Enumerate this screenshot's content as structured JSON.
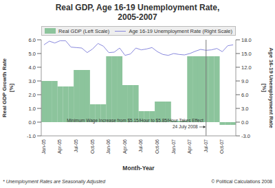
{
  "chart_data": {
    "type": "bar",
    "title": [
      "Real GDP, Age 16-19 Unemployment Rate,",
      "2005-2007"
    ],
    "categories": [
      "Jan-05",
      null,
      null,
      "Apr-05",
      null,
      null,
      "Jul-05",
      null,
      null,
      "Oct-05",
      null,
      null,
      "Jan-06",
      null,
      null,
      "Apr-06",
      null,
      null,
      "Jul-06",
      null,
      null,
      "Oct-06",
      null,
      null,
      "Jan-07",
      null,
      null,
      "Apr-07",
      null,
      null,
      "Jul-07",
      null,
      null,
      "Oct-07",
      null,
      null
    ],
    "series": [
      {
        "name": "Real GDP (Left Scale)",
        "type": "bar",
        "color": "#8cc49c",
        "values": [
          3.0,
          3.0,
          3.0,
          2.6,
          2.6,
          2.6,
          3.8,
          3.8,
          3.8,
          1.3,
          1.3,
          1.3,
          4.8,
          4.8,
          4.8,
          2.7,
          2.7,
          2.7,
          0.8,
          0.8,
          0.8,
          1.5,
          1.5,
          1.5,
          0.1,
          0.1,
          0.1,
          4.8,
          4.8,
          4.8,
          4.8,
          4.8,
          4.8,
          -0.2,
          -0.2,
          -0.2
        ]
      },
      {
        "name": "Age 16-19 Unemployment Rate (Right Scale)",
        "type": "line",
        "axis": "y2",
        "color": "#8888dd",
        "values": [
          16.9,
          17.7,
          17.3,
          17.8,
          17.8,
          16.4,
          16.3,
          16.2,
          15.2,
          16.0,
          17.2,
          16.6,
          15.2,
          15.3,
          16.2,
          14.6,
          14.9,
          16.2,
          15.8,
          16.0,
          16.3,
          15.4,
          14.8,
          14.6,
          15.0,
          14.8,
          14.7,
          15.0,
          15.5,
          15.9,
          15.7,
          15.8,
          16.1,
          15.4,
          16.7,
          16.9
        ]
      }
    ],
    "ylim": [
      -1,
      6
    ],
    "yticks": [
      {
        "value": -1,
        "label": "-1.0"
      },
      {
        "value": 0,
        "label": "0.0"
      },
      {
        "value": 1,
        "label": "1.0"
      },
      {
        "value": 2,
        "label": "2.0"
      },
      {
        "value": 3,
        "label": "3.0"
      },
      {
        "value": 4,
        "label": "4.0"
      },
      {
        "value": 5,
        "label": "5.0"
      },
      {
        "value": 6,
        "label": "6.0"
      }
    ],
    "y2lim": [
      -3,
      18
    ],
    "y2ticks": [
      {
        "value": -3,
        "label": "-3.0"
      },
      {
        "value": 0,
        "label": "0.0"
      },
      {
        "value": 3,
        "label": "3.0"
      },
      {
        "value": 6,
        "label": "6.0"
      },
      {
        "value": 9,
        "label": "9.0"
      },
      {
        "value": 12,
        "label": "12.0"
      },
      {
        "value": 15,
        "label": "15.0"
      },
      {
        "value": 18,
        "label": "18.0"
      }
    ],
    "x_label": "Month-Year",
    "y_label": [
      "Real GDP Growth Rate",
      "[%]"
    ],
    "y2_label": [
      "Age 16-19 Unemployment Rate",
      "[%]"
    ],
    "annotations": [
      {
        "x": "Jul-07",
        "text": [
          "Minimum Wage Increase from $5.15/Hour to $5.85/Hour Takes Effect",
          "24 July 2008"
        ]
      }
    ],
    "notes": [
      "* Unemployment Rates are Seasonally Adjusted",
      "© Political Calculations 2008"
    ],
    "legend": "top",
    "grid": false
  }
}
